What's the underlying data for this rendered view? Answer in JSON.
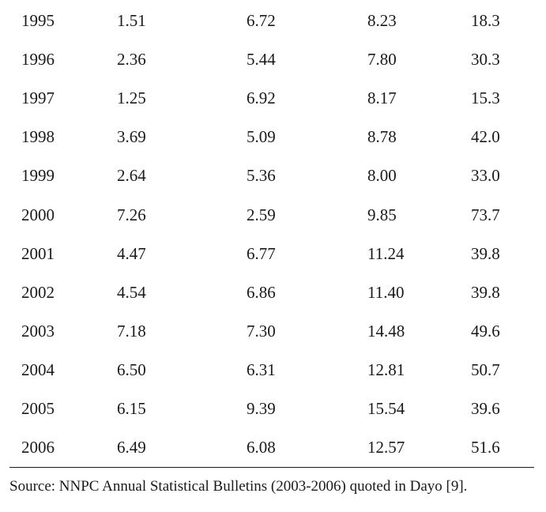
{
  "table": {
    "rows": [
      [
        "1995",
        "1.51",
        "6.72",
        "8.23",
        "18.3"
      ],
      [
        "1996",
        "2.36",
        "5.44",
        "7.80",
        "30.3"
      ],
      [
        "1997",
        "1.25",
        "6.92",
        "8.17",
        "15.3"
      ],
      [
        "1998",
        "3.69",
        "5.09",
        "8.78",
        "42.0"
      ],
      [
        "1999",
        "2.64",
        "5.36",
        "8.00",
        "33.0"
      ],
      [
        "2000",
        "7.26",
        "2.59",
        "9.85",
        "73.7"
      ],
      [
        "2001",
        "4.47",
        "6.77",
        "11.24",
        "39.8"
      ],
      [
        "2002",
        "4.54",
        "6.86",
        "11.40",
        "39.8"
      ],
      [
        "2003",
        "7.18",
        "7.30",
        "14.48",
        "49.6"
      ],
      [
        "2004",
        "6.50",
        "6.31",
        "12.81",
        "50.7"
      ],
      [
        "2005",
        "6.15",
        "9.39",
        "15.54",
        "39.6"
      ],
      [
        "2006",
        "6.49",
        "6.08",
        "12.57",
        "51.6"
      ]
    ]
  },
  "source_note": "Source: NNPC Annual Statistical Bulletins (2003-2006) quoted in Dayo [9].",
  "colors": {
    "text": "#1a1a1a",
    "background": "#ffffff"
  }
}
